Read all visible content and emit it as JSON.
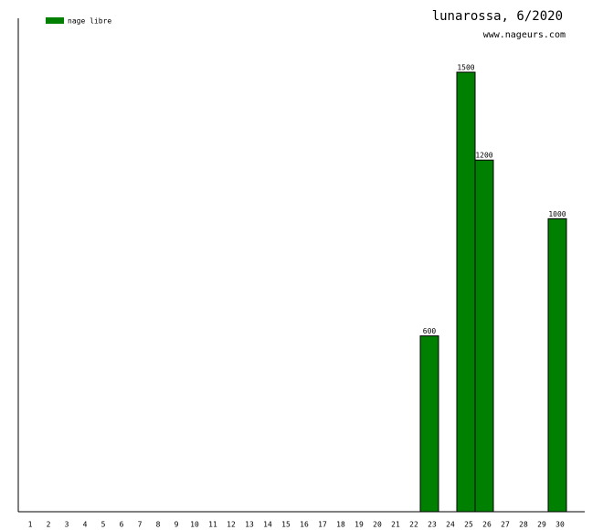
{
  "chart_data": {
    "type": "bar",
    "title": "lunarossa, 6/2020",
    "subtitle": "www.nageurs.com",
    "categories": [
      "1",
      "2",
      "3",
      "4",
      "5",
      "6",
      "7",
      "8",
      "9",
      "10",
      "11",
      "12",
      "13",
      "14",
      "15",
      "16",
      "17",
      "18",
      "19",
      "20",
      "21",
      "22",
      "23",
      "24",
      "25",
      "26",
      "27",
      "28",
      "29",
      "30"
    ],
    "series": [
      {
        "name": "nage libre",
        "color": "#008000",
        "values": [
          null,
          null,
          null,
          null,
          null,
          null,
          null,
          null,
          null,
          null,
          null,
          null,
          null,
          null,
          null,
          null,
          null,
          null,
          null,
          null,
          null,
          null,
          600,
          null,
          1500,
          1200,
          null,
          null,
          null,
          1000
        ]
      }
    ],
    "ylim": [
      0,
      1684
    ]
  }
}
